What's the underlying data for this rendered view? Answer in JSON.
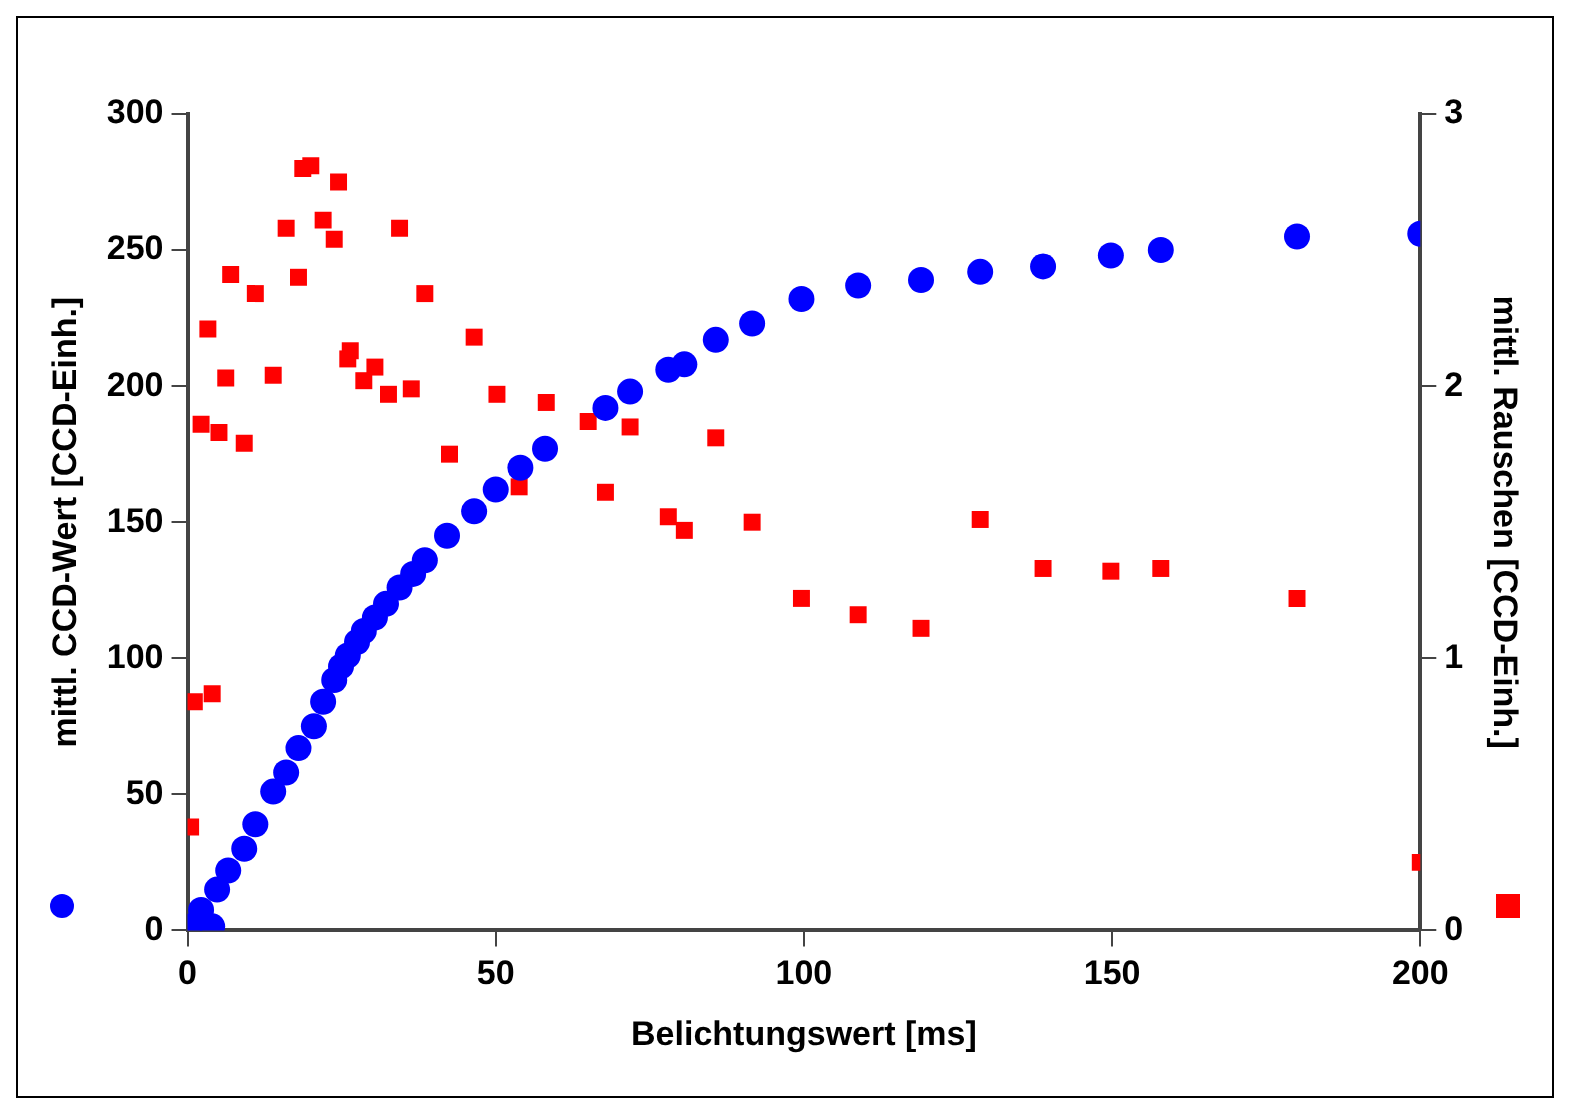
{
  "chart_data": {
    "type": "scatter",
    "xlabel": "Belichtungswert [ms]",
    "ylabel": "mittl. CCD-Wert [CCD-Einh.]",
    "y2label": "mittl. Rauschen [CCD-Einh.]",
    "xlim": [
      0,
      200
    ],
    "xticks": [
      0,
      50,
      100,
      150,
      200
    ],
    "ylim": [
      0,
      300
    ],
    "yticks": [
      0,
      50,
      100,
      150,
      200,
      250,
      300
    ],
    "y2lim": [
      0,
      3
    ],
    "y2ticks": [
      0,
      1,
      2,
      3
    ],
    "grid": false,
    "legend": false,
    "series": [
      {
        "color": "#0000ff",
        "marker": "circle",
        "x": [
          0.4,
          2.2,
          4,
          4.8,
          6.6,
          9.2,
          11,
          13.9,
          16,
          18,
          19.4,
          20.5,
          22,
          23.8,
          24.9,
          26,
          27.5,
          28.6,
          30.4,
          32.2,
          34.4,
          36.6,
          38.5,
          42.1,
          46.5,
          50,
          54,
          58,
          67.8,
          71.8,
          78,
          80.6,
          85.7,
          91.6,
          99.6,
          108.8,
          119,
          128.6,
          138.8,
          149.8,
          157.9,
          180,
          200
        ],
        "values": [
          1.5,
          7.5,
          1.5,
          15,
          22,
          30,
          39,
          51,
          58,
          67,
          null,
          75,
          84,
          92,
          97,
          101,
          106,
          110,
          115,
          120,
          126,
          131,
          136,
          145,
          154,
          162,
          170,
          177,
          192,
          198,
          206,
          208,
          217,
          223,
          232,
          237,
          239,
          242,
          244,
          248,
          250,
          255,
          256
        ]
      },
      {
        "color": "#ff0000",
        "marker": "square",
        "axis": "y2",
        "x": [
          0.5,
          1.1,
          2.2,
          3.3,
          4,
          5.1,
          6.2,
          7,
          9.2,
          11,
          13.9,
          16,
          18,
          18.7,
          20,
          22,
          23.8,
          24.5,
          26,
          26.4,
          28.6,
          30.4,
          32.6,
          34.4,
          36.3,
          38.5,
          42.5,
          46.5,
          50.2,
          53.8,
          58.2,
          65,
          67.8,
          71.8,
          78,
          80.6,
          85.7,
          91.6,
          99.6,
          108.8,
          119,
          128.6,
          138.8,
          149.8,
          157.9,
          180,
          200
        ],
        "values": [
          0.38,
          0.84,
          1.86,
          2.21,
          0.87,
          1.83,
          2.03,
          2.41,
          1.79,
          2.34,
          2.04,
          2.58,
          2.4,
          2.8,
          2.81,
          2.61,
          2.54,
          2.75,
          2.1,
          2.13,
          2.02,
          2.07,
          1.97,
          2.58,
          1.99,
          2.34,
          1.75,
          2.18,
          1.97,
          1.63,
          1.94,
          1.87,
          1.61,
          1.85,
          1.52,
          1.47,
          1.81,
          1.5,
          1.22,
          1.16,
          1.11,
          1.51,
          1.33,
          1.32,
          1.33,
          1.22,
          0.25
        ]
      }
    ]
  }
}
